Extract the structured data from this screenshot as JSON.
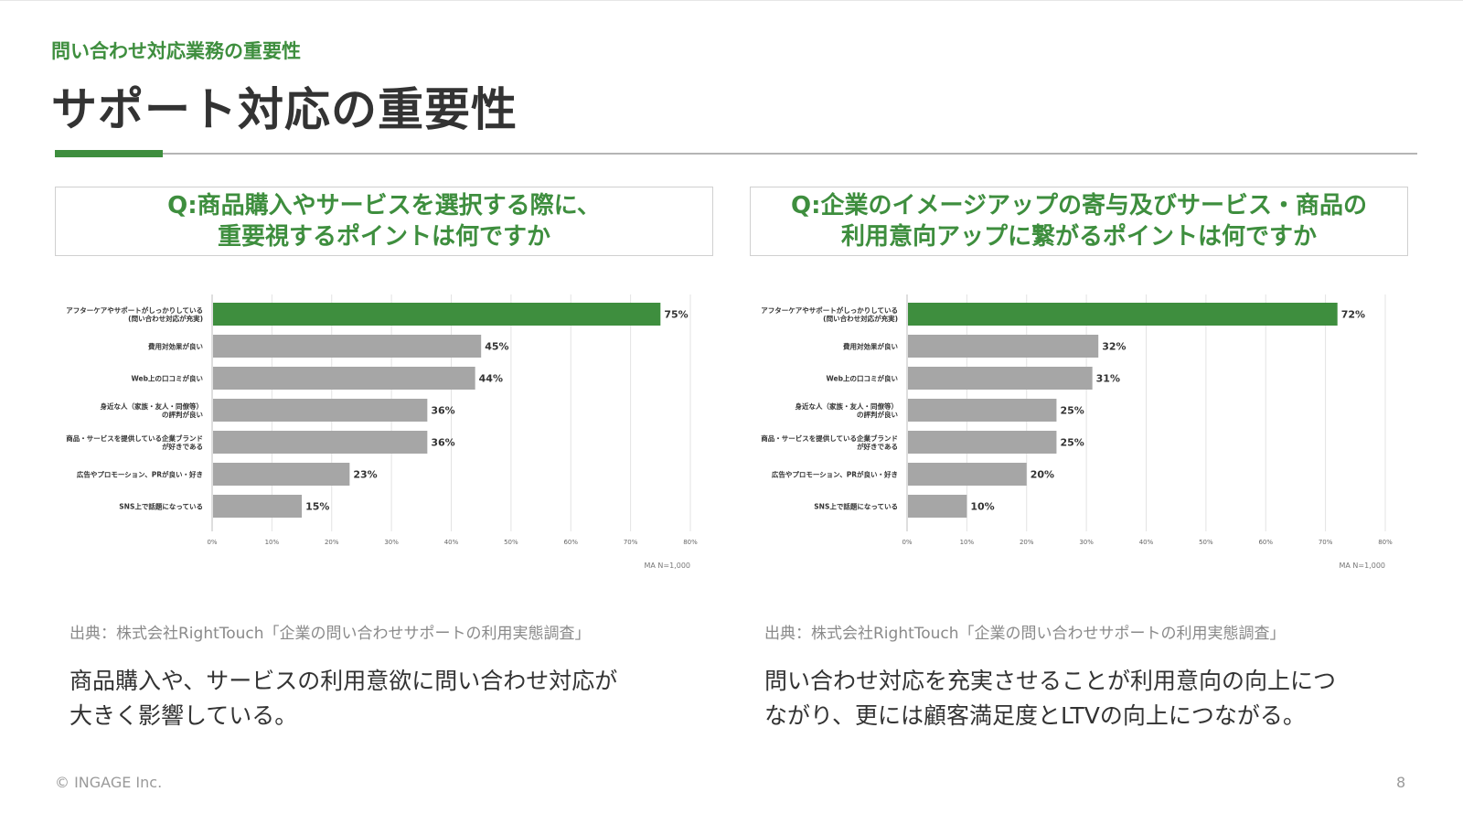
{
  "header": {
    "subtitle": "問い合わせ対応業務の重要性",
    "title": "サポート対応の重要性"
  },
  "left": {
    "question_line1": "Q:商品購入やサービスを選択する際に、",
    "question_line2": "重要視するポイントは何ですか",
    "source": "出典：株式会社RightTouch「企業の問い合わせサポートの利用実態調査」",
    "conclusion_line1": "商品購入や、サービスの利用意欲に問い合わせ対応が",
    "conclusion_line2": "大きく影響している。"
  },
  "right": {
    "question_line1": "Q:企業のイメージアップの寄与及びサービス・商品の",
    "question_line2": "利用意向アップに繋がるポイントは何ですか",
    "source": "出典：株式会社RightTouch「企業の問い合わせサポートの利用実態調査」",
    "conclusion_line1": "問い合わせ対応を充実させることが利用意向の向上につ",
    "conclusion_line2": "ながり、更には顧客満足度とLTVの向上につながる。"
  },
  "footer": {
    "copyright": "© INGAGE Inc.",
    "page": "8"
  },
  "colors": {
    "accent": "#3e8e3e",
    "bar_gray": "#a6a6a6",
    "text": "#333333"
  },
  "chart_data": [
    {
      "type": "bar",
      "orientation": "horizontal",
      "categories": [
        [
          "アフターケアやサポートがしっかりしている",
          "(問い合わせ対応が充実)"
        ],
        [
          "費用対効果が良い"
        ],
        [
          "Web上の口コミが良い"
        ],
        [
          "身近な人（家族・友人・同僚等）",
          "の評判が良い"
        ],
        [
          "商品・サービスを提供している企業ブランド",
          "が好きである"
        ],
        [
          "広告やプロモーション、PRが良い・好き"
        ],
        [
          "SNS上で話題になっている"
        ]
      ],
      "values": [
        75,
        45,
        44,
        36,
        36,
        23,
        15
      ],
      "value_labels": [
        "75%",
        "45%",
        "44%",
        "36%",
        "36%",
        "23%",
        "15%"
      ],
      "highlight_index": 0,
      "xlim": [
        0,
        80
      ],
      "ticks": [
        "0%",
        "10%",
        "20%",
        "30%",
        "40%",
        "50%",
        "60%",
        "70%",
        "80%"
      ],
      "note": "MA N=1,000",
      "grid": true
    },
    {
      "type": "bar",
      "orientation": "horizontal",
      "categories": [
        [
          "アフターケアやサポートがしっかりしている",
          "(問い合わせ対応が充実)"
        ],
        [
          "費用対効果が良い"
        ],
        [
          "Web上の口コミが良い"
        ],
        [
          "身近な人（家族・友人・同僚等）",
          "の評判が良い"
        ],
        [
          "商品・サービスを提供している企業ブランド",
          "が好きである"
        ],
        [
          "広告やプロモーション、PRが良い・好き"
        ],
        [
          "SNS上で話題になっている"
        ]
      ],
      "values": [
        72,
        32,
        31,
        25,
        25,
        20,
        10
      ],
      "value_labels": [
        "72%",
        "32%",
        "31%",
        "25%",
        "25%",
        "20%",
        "10%"
      ],
      "highlight_index": 0,
      "xlim": [
        0,
        80
      ],
      "ticks": [
        "0%",
        "10%",
        "20%",
        "30%",
        "40%",
        "50%",
        "60%",
        "70%",
        "80%"
      ],
      "note": "MA N=1,000",
      "grid": true
    }
  ]
}
